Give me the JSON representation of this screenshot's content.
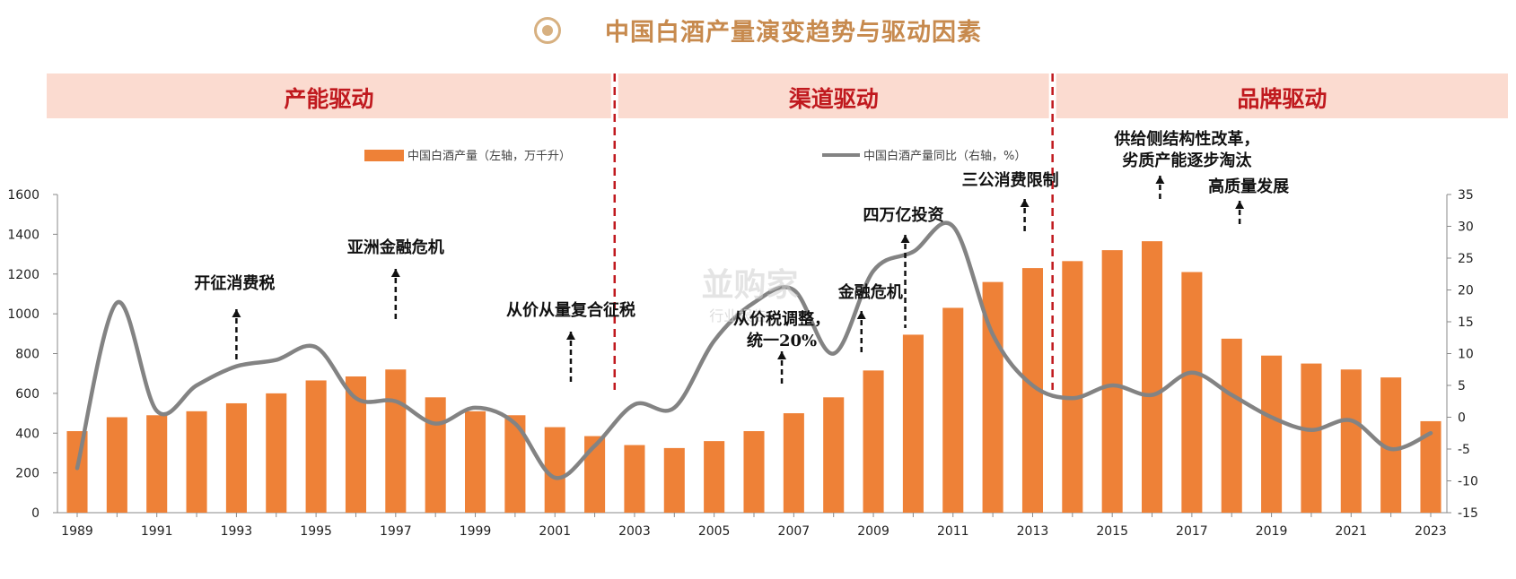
{
  "title": "中国白酒产量演变趋势与驱动因素",
  "phases": [
    {
      "label": "产能驱动",
      "from": 1989,
      "to": 2002.5
    },
    {
      "label": "渠道驱动",
      "from": 2002.5,
      "to": 2013.5
    },
    {
      "label": "品牌驱动",
      "from": 2013.5,
      "to": 2023
    }
  ],
  "watermark": {
    "main": "並购家",
    "sub": "行业报告"
  },
  "chart_data": {
    "type": "bar",
    "x": [
      1989,
      1990,
      1991,
      1992,
      1993,
      1994,
      1995,
      1996,
      1997,
      1998,
      1999,
      2000,
      2001,
      2002,
      2003,
      2004,
      2005,
      2006,
      2007,
      2008,
      2009,
      2010,
      2011,
      2012,
      2013,
      2014,
      2015,
      2016,
      2017,
      2018,
      2019,
      2020,
      2021,
      2022,
      2023
    ],
    "x_tick_labels": [
      "1989",
      "1991",
      "1993",
      "1995",
      "1997",
      "1999",
      "2001",
      "2003",
      "2005",
      "2007",
      "2009",
      "2011",
      "2013",
      "2015",
      "2017",
      "2019",
      "2021",
      "2023"
    ],
    "series": [
      {
        "name": "中国白酒产量（左轴，万千升）",
        "type": "bar",
        "axis": "left",
        "color": "#ee8137",
        "values": [
          410,
          480,
          490,
          510,
          550,
          600,
          665,
          685,
          720,
          580,
          510,
          490,
          430,
          385,
          340,
          325,
          360,
          410,
          500,
          580,
          715,
          895,
          1030,
          1160,
          1230,
          1265,
          1320,
          1365,
          1210,
          875,
          790,
          750,
          720,
          680,
          460
        ]
      },
      {
        "name": "中国白酒产量同比（右轴，%）",
        "type": "line",
        "axis": "right",
        "color": "#838383",
        "values": [
          -8,
          18,
          1,
          5,
          8,
          9,
          11,
          3,
          2.5,
          -1,
          1.5,
          -1,
          -9.5,
          -4.5,
          2,
          1.5,
          12,
          18,
          20,
          10,
          23,
          26,
          30,
          13,
          5,
          3,
          5,
          3.5,
          7,
          3.5,
          0,
          -2,
          -0.5,
          -5,
          -2.5
        ]
      }
    ],
    "y_left": {
      "min": 0,
      "max": 1600,
      "ticks": [
        0,
        200,
        400,
        600,
        800,
        1000,
        1200,
        1400,
        1600
      ]
    },
    "y_right": {
      "min": -15,
      "max": 35,
      "ticks": [
        -15,
        -10,
        -5,
        0,
        5,
        10,
        15,
        20,
        25,
        30,
        35
      ]
    },
    "legend_position": "top",
    "annotations": [
      {
        "lines": [
          "开征消费税"
        ],
        "year": 1993,
        "direction": "up"
      },
      {
        "lines": [
          "亚洲金融危机"
        ],
        "year": 1997,
        "direction": "up"
      },
      {
        "lines": [
          "从价从量复合征税"
        ],
        "year": 2001.4,
        "direction": "up"
      },
      {
        "lines": [
          "从价税调整，",
          "统一20%"
        ],
        "year": 2006.7,
        "direction": "down"
      },
      {
        "lines": [
          "金融危机"
        ],
        "year": 2008.7,
        "direction": "up"
      },
      {
        "lines": [
          "四万亿投资"
        ],
        "year": 2009.8,
        "direction": "down"
      },
      {
        "lines": [
          "三公消费限制"
        ],
        "year": 2012.8,
        "direction": "up"
      },
      {
        "lines": [
          "供给侧结构性改革，",
          "劣质产能逐步淘汰"
        ],
        "year": 2016.2,
        "direction": "down"
      },
      {
        "lines": [
          "高质量发展"
        ],
        "year": 2018.2,
        "direction": "down"
      }
    ]
  }
}
